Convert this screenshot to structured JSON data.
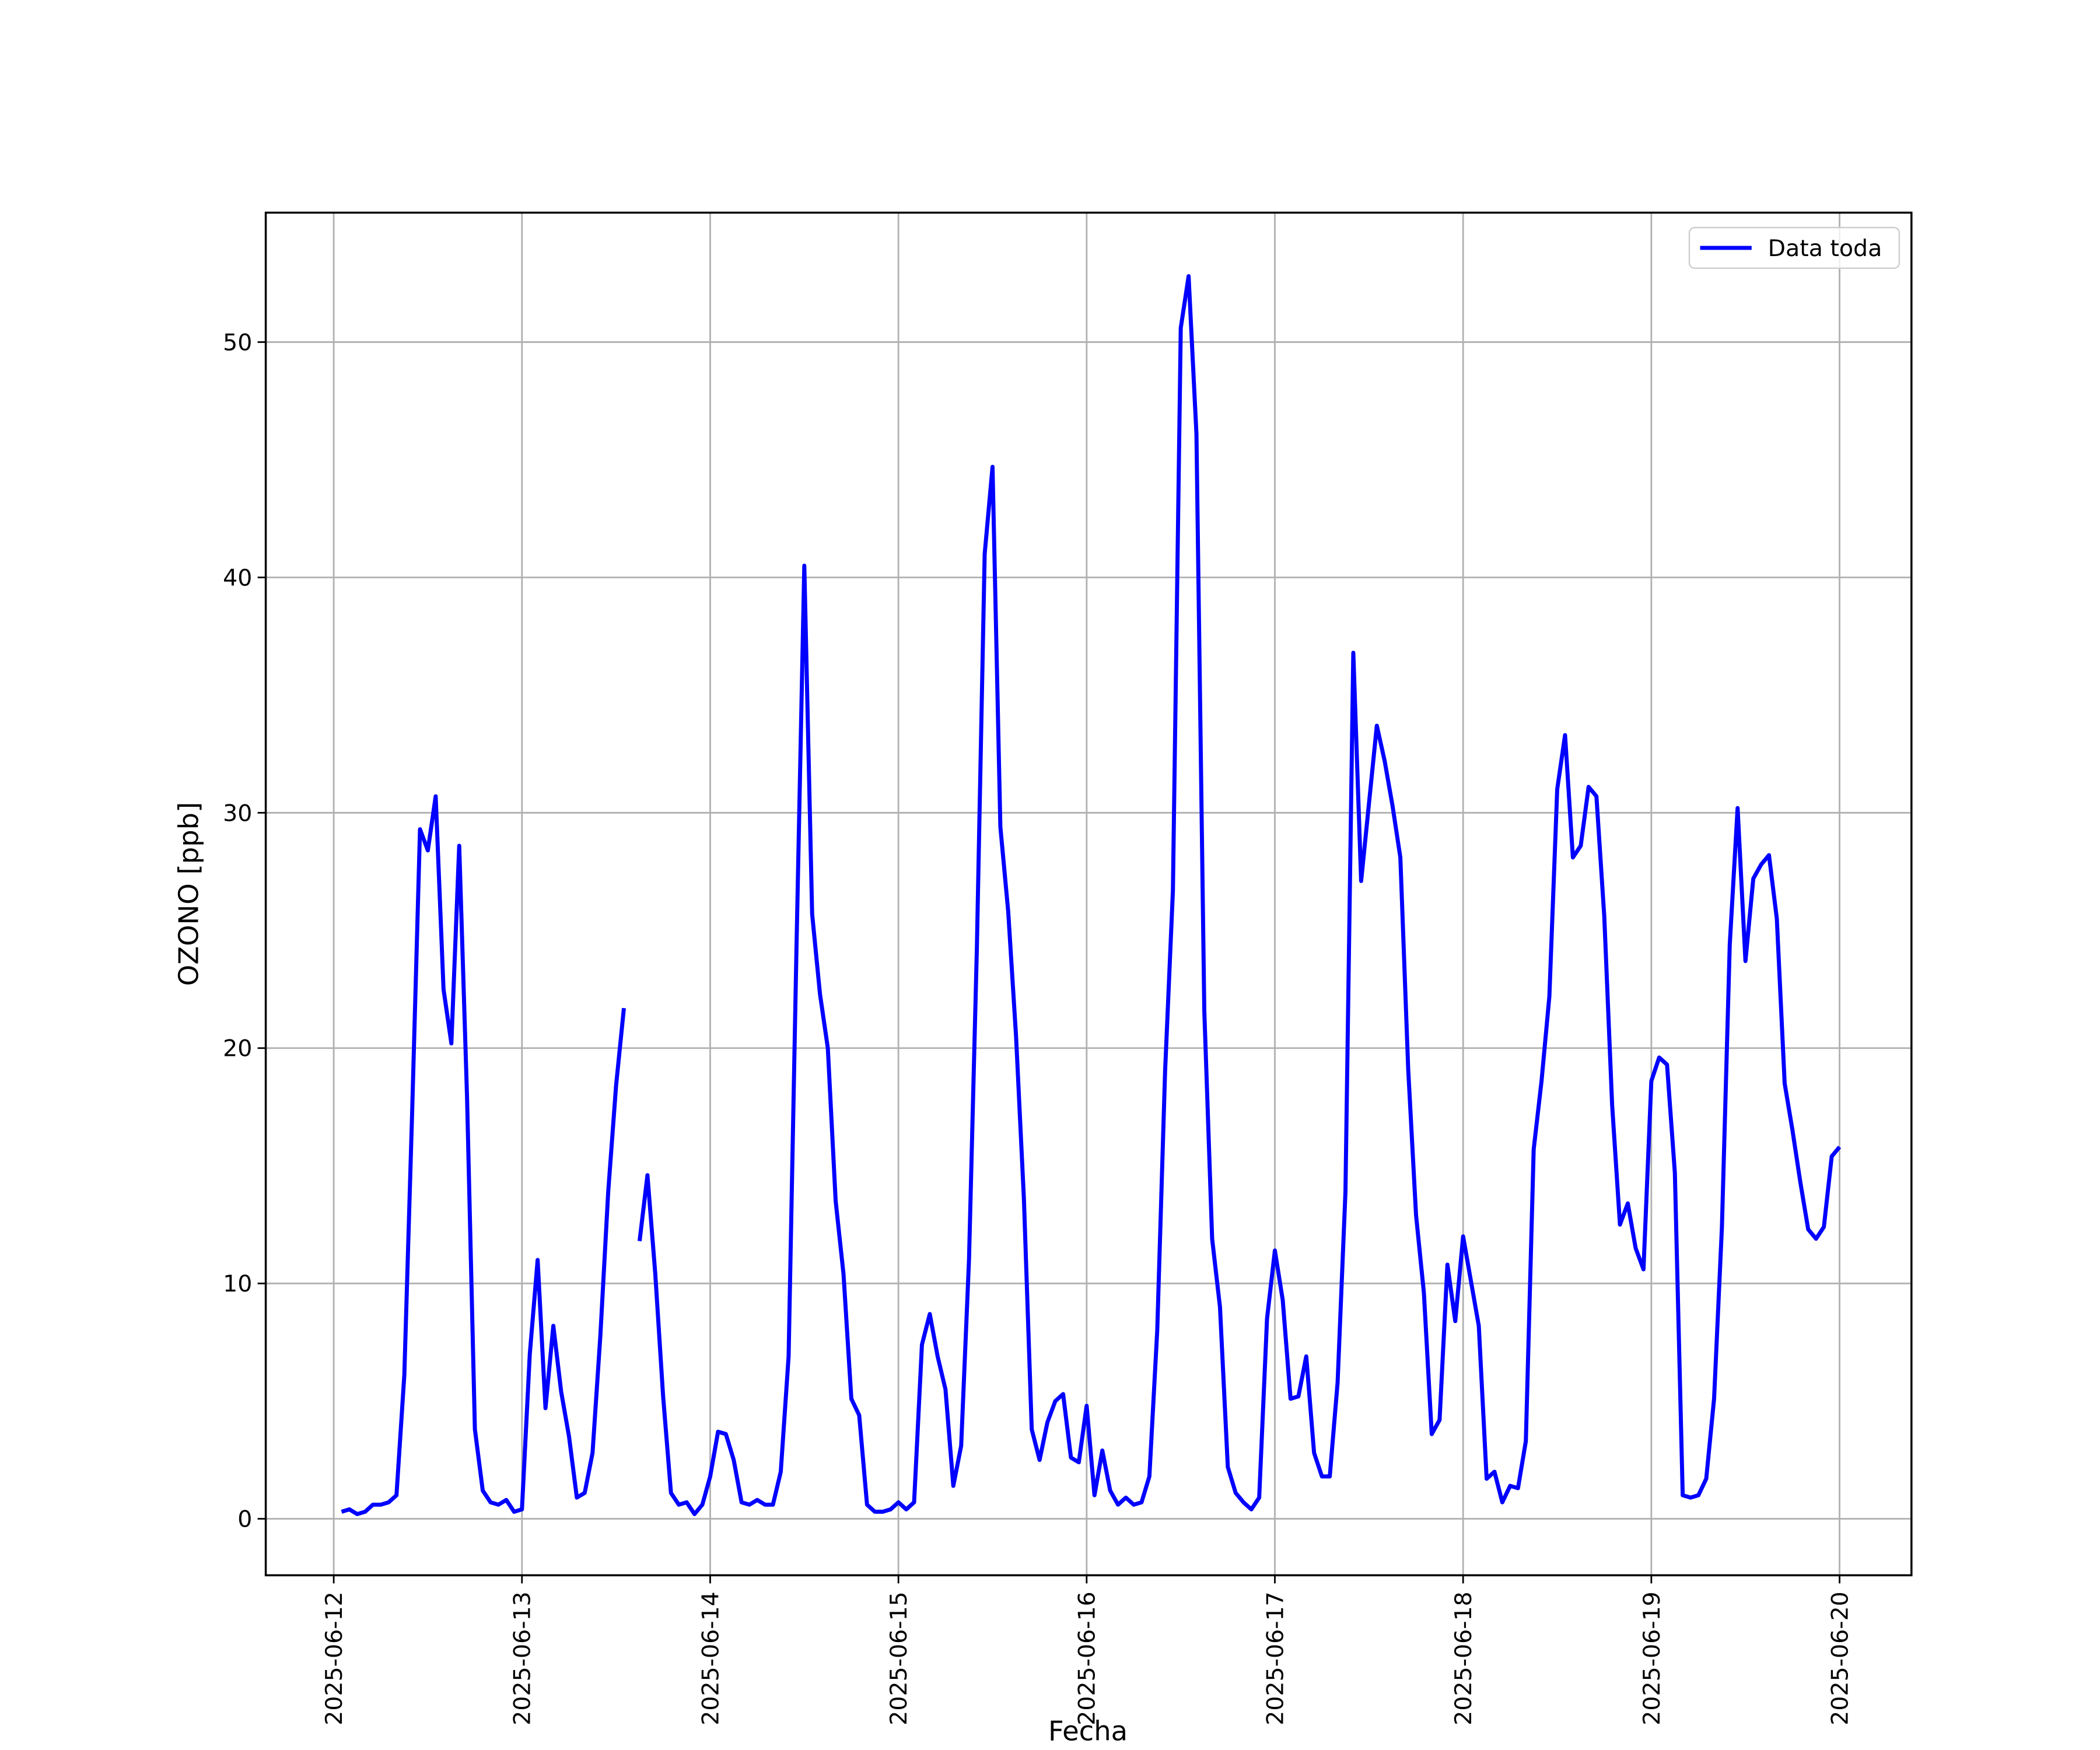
{
  "chart_data": {
    "type": "line",
    "xlabel": "Fecha",
    "ylabel": "OZONO [ppb]",
    "x": [
      "2025-06-12 01:00",
      "2025-06-12 02:00",
      "2025-06-12 03:00",
      "2025-06-12 04:00",
      "2025-06-12 05:00",
      "2025-06-12 06:00",
      "2025-06-12 07:00",
      "2025-06-12 08:00",
      "2025-06-12 09:00",
      "2025-06-12 10:00",
      "2025-06-12 11:00",
      "2025-06-12 12:00",
      "2025-06-12 13:00",
      "2025-06-12 14:00",
      "2025-06-12 15:00",
      "2025-06-12 16:00",
      "2025-06-12 17:00",
      "2025-06-12 18:00",
      "2025-06-12 19:00",
      "2025-06-12 20:00",
      "2025-06-12 21:00",
      "2025-06-12 22:00",
      "2025-06-12 23:00",
      "2025-06-13 00:00",
      "2025-06-13 01:00",
      "2025-06-13 02:00",
      "2025-06-13 03:00",
      "2025-06-13 04:00",
      "2025-06-13 05:00",
      "2025-06-13 06:00",
      "2025-06-13 07:00",
      "2025-06-13 08:00",
      "2025-06-13 09:00",
      "2025-06-13 10:00",
      "2025-06-13 11:00",
      "2025-06-13 12:00",
      "2025-06-13 13:00",
      "2025-06-13 14:00",
      "2025-06-13 15:00",
      "2025-06-13 16:00",
      "2025-06-13 17:00",
      "2025-06-13 18:00",
      "2025-06-13 19:00",
      "2025-06-13 20:00",
      "2025-06-13 21:00",
      "2025-06-13 22:00",
      "2025-06-13 23:00",
      "2025-06-14 00:00",
      "2025-06-14 01:00",
      "2025-06-14 02:00",
      "2025-06-14 03:00",
      "2025-06-14 04:00",
      "2025-06-14 05:00",
      "2025-06-14 06:00",
      "2025-06-14 07:00",
      "2025-06-14 08:00",
      "2025-06-14 09:00",
      "2025-06-14 10:00",
      "2025-06-14 11:00",
      "2025-06-14 12:00",
      "2025-06-14 13:00",
      "2025-06-14 14:00",
      "2025-06-14 15:00",
      "2025-06-14 16:00",
      "2025-06-14 17:00",
      "2025-06-14 18:00",
      "2025-06-14 19:00",
      "2025-06-14 20:00",
      "2025-06-14 21:00",
      "2025-06-14 22:00",
      "2025-06-14 23:00",
      "2025-06-15 00:00",
      "2025-06-15 01:00",
      "2025-06-15 02:00",
      "2025-06-15 03:00",
      "2025-06-15 04:00",
      "2025-06-15 05:00",
      "2025-06-15 06:00",
      "2025-06-15 07:00",
      "2025-06-15 08:00",
      "2025-06-15 09:00",
      "2025-06-15 10:00",
      "2025-06-15 11:00",
      "2025-06-15 12:00",
      "2025-06-15 13:00",
      "2025-06-15 14:00",
      "2025-06-15 15:00",
      "2025-06-15 16:00",
      "2025-06-15 17:00",
      "2025-06-15 18:00",
      "2025-06-15 19:00",
      "2025-06-15 20:00",
      "2025-06-15 21:00",
      "2025-06-15 22:00",
      "2025-06-15 23:00",
      "2025-06-16 00:00",
      "2025-06-16 01:00",
      "2025-06-16 02:00",
      "2025-06-16 03:00",
      "2025-06-16 04:00",
      "2025-06-16 05:00",
      "2025-06-16 06:00",
      "2025-06-16 07:00",
      "2025-06-16 08:00",
      "2025-06-16 09:00",
      "2025-06-16 10:00",
      "2025-06-16 11:00",
      "2025-06-16 12:00",
      "2025-06-16 13:00",
      "2025-06-16 14:00",
      "2025-06-16 15:00",
      "2025-06-16 16:00",
      "2025-06-16 17:00",
      "2025-06-16 18:00",
      "2025-06-16 19:00",
      "2025-06-16 20:00",
      "2025-06-16 21:00",
      "2025-06-16 22:00",
      "2025-06-16 23:00",
      "2025-06-17 00:00",
      "2025-06-17 01:00",
      "2025-06-17 02:00",
      "2025-06-17 03:00",
      "2025-06-17 04:00",
      "2025-06-17 05:00",
      "2025-06-17 06:00",
      "2025-06-17 07:00",
      "2025-06-17 08:00",
      "2025-06-17 09:00",
      "2025-06-17 10:00",
      "2025-06-17 11:00",
      "2025-06-17 12:00",
      "2025-06-17 13:00",
      "2025-06-17 14:00",
      "2025-06-17 15:00",
      "2025-06-17 16:00",
      "2025-06-17 17:00",
      "2025-06-17 18:00",
      "2025-06-17 19:00",
      "2025-06-17 20:00",
      "2025-06-17 21:00",
      "2025-06-17 22:00",
      "2025-06-17 23:00",
      "2025-06-18 00:00",
      "2025-06-18 01:00",
      "2025-06-18 02:00",
      "2025-06-18 03:00",
      "2025-06-18 04:00",
      "2025-06-18 05:00",
      "2025-06-18 06:00",
      "2025-06-18 07:00",
      "2025-06-18 08:00",
      "2025-06-18 09:00",
      "2025-06-18 10:00",
      "2025-06-18 11:00",
      "2025-06-18 12:00",
      "2025-06-18 13:00",
      "2025-06-18 14:00",
      "2025-06-18 15:00",
      "2025-06-18 16:00",
      "2025-06-18 17:00",
      "2025-06-18 18:00",
      "2025-06-18 19:00",
      "2025-06-18 20:00",
      "2025-06-18 21:00",
      "2025-06-18 22:00",
      "2025-06-18 23:00",
      "2025-06-19 00:00",
      "2025-06-19 01:00",
      "2025-06-19 02:00",
      "2025-06-19 03:00",
      "2025-06-19 04:00",
      "2025-06-19 05:00",
      "2025-06-19 06:00",
      "2025-06-19 07:00",
      "2025-06-19 08:00",
      "2025-06-19 09:00",
      "2025-06-19 10:00",
      "2025-06-19 11:00",
      "2025-06-19 12:00",
      "2025-06-19 13:00",
      "2025-06-19 14:00",
      "2025-06-19 15:00",
      "2025-06-19 16:00",
      "2025-06-19 17:00",
      "2025-06-19 18:00",
      "2025-06-19 19:00",
      "2025-06-19 20:00",
      "2025-06-19 21:00",
      "2025-06-19 22:00",
      "2025-06-19 23:00",
      "2025-06-20 00:00"
    ],
    "series": [
      {
        "name": "Data toda",
        "color": "#0000ff",
        "values": [
          0.3,
          0.4,
          0.2,
          0.3,
          0.6,
          0.6,
          0.7,
          1.0,
          6.1,
          17.3,
          29.3,
          28.4,
          30.7,
          22.5,
          20.2,
          28.6,
          17.9,
          3.8,
          1.2,
          0.7,
          0.6,
          0.8,
          0.3,
          0.4,
          7.0,
          11.0,
          4.7,
          8.2,
          5.4,
          3.5,
          0.9,
          1.1,
          2.8,
          7.8,
          13.9,
          18.4,
          21.7,
          null,
          11.8,
          14.6,
          10.4,
          5.2,
          1.1,
          0.6,
          0.7,
          0.2,
          0.6,
          1.8,
          3.7,
          3.6,
          2.5,
          0.7,
          0.6,
          0.8,
          0.6,
          0.6,
          2.0,
          6.9,
          24.2,
          40.5,
          25.7,
          22.3,
          20.0,
          13.5,
          10.4,
          5.1,
          4.4,
          0.6,
          0.3,
          0.3,
          0.4,
          0.7,
          0.4,
          0.7,
          7.4,
          8.7,
          6.9,
          5.5,
          1.4,
          3.1,
          11.0,
          24.2,
          41.0,
          44.7,
          29.4,
          25.8,
          20.5,
          13.6,
          3.8,
          2.5,
          4.1,
          5.0,
          5.3,
          2.6,
          2.4,
          4.8,
          1.0,
          2.9,
          1.2,
          0.6,
          0.9,
          0.6,
          0.7,
          1.8,
          8.0,
          19.0,
          26.7,
          50.6,
          52.8,
          46.1,
          21.6,
          11.9,
          9.0,
          2.2,
          1.1,
          0.7,
          0.4,
          0.9,
          8.5,
          11.4,
          9.3,
          5.1,
          5.2,
          6.9,
          2.8,
          1.8,
          1.8,
          5.8,
          13.9,
          36.8,
          27.1,
          30.4,
          33.7,
          32.2,
          30.3,
          28.1,
          19.1,
          12.9,
          9.6,
          3.6,
          4.2,
          10.8,
          8.4,
          12.0,
          10.1,
          8.2,
          1.7,
          2.0,
          0.7,
          1.4,
          1.3,
          3.3,
          15.7,
          18.6,
          22.2,
          31.0,
          33.3,
          28.1,
          28.6,
          31.1,
          30.7,
          25.6,
          17.6,
          12.5,
          13.4,
          11.5,
          10.6,
          18.6,
          19.6,
          19.3,
          14.7,
          1.0,
          0.9,
          1.0,
          1.7,
          5.1,
          12.4,
          24.4,
          30.2,
          23.7,
          27.2,
          27.8,
          28.2,
          25.5,
          18.5,
          16.5,
          14.3,
          12.3,
          11.9,
          12.4,
          15.4,
          15.8
        ]
      }
    ],
    "xlim": [
      "2025-06-11 15:20",
      "2025-06-20 09:10"
    ],
    "xticks": [
      "2025-06-12",
      "2025-06-13",
      "2025-06-14",
      "2025-06-15",
      "2025-06-16",
      "2025-06-17",
      "2025-06-18",
      "2025-06-19",
      "2025-06-20"
    ],
    "ylim": [
      -2.4,
      55.5
    ],
    "yticks": [
      0,
      10,
      20,
      30,
      40,
      50
    ],
    "grid": true,
    "legend": "upper right"
  }
}
